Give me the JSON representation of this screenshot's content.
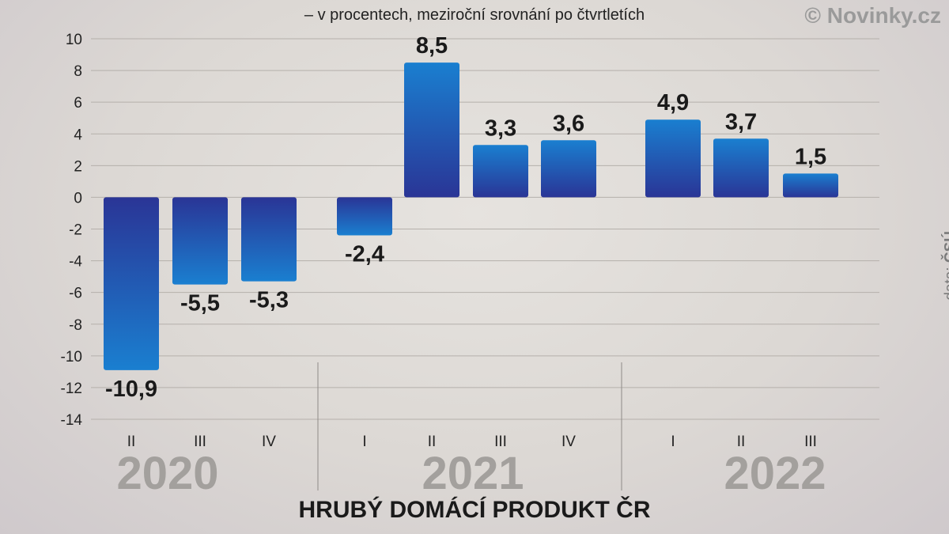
{
  "header": {
    "subtitle": "– v procentech, meziroční srovnání po čtvrtletích",
    "brand": "© Novinky.cz",
    "source_prefix": "data: ",
    "source_name": "ČSÚ"
  },
  "chart_data": {
    "type": "bar",
    "title": "HRUBÝ DOMÁCÍ PRODUKT ČR",
    "subtitle": "– v procentech, meziroční srovnání po čtvrtletích",
    "ylim": [
      -14,
      10
    ],
    "yticks": [
      10,
      8,
      6,
      4,
      2,
      0,
      -2,
      -4,
      -6,
      -8,
      -10,
      -12,
      -14
    ],
    "groups": [
      {
        "year": "2020",
        "quarters": [
          "II",
          "III",
          "IV"
        ],
        "values": [
          -10.9,
          -5.5,
          -5.3
        ],
        "labels": [
          "-10,9",
          "-5,5",
          "-5,3"
        ]
      },
      {
        "year": "2021",
        "quarters": [
          "I",
          "II",
          "III",
          "IV"
        ],
        "values": [
          -2.4,
          8.5,
          3.3,
          3.6
        ],
        "labels": [
          "-2,4",
          "8,5",
          "3,3",
          "3,6"
        ]
      },
      {
        "year": "2022",
        "quarters": [
          "I",
          "II",
          "III"
        ],
        "values": [
          4.9,
          3.7,
          1.5
        ],
        "labels": [
          "4,9",
          "3,7",
          "1,5"
        ]
      }
    ],
    "colors": {
      "bar_dark": "#2a3596",
      "bar_light": "#1a7fd0",
      "grid": "#b5b0ab",
      "year": "#a3a09d"
    }
  }
}
